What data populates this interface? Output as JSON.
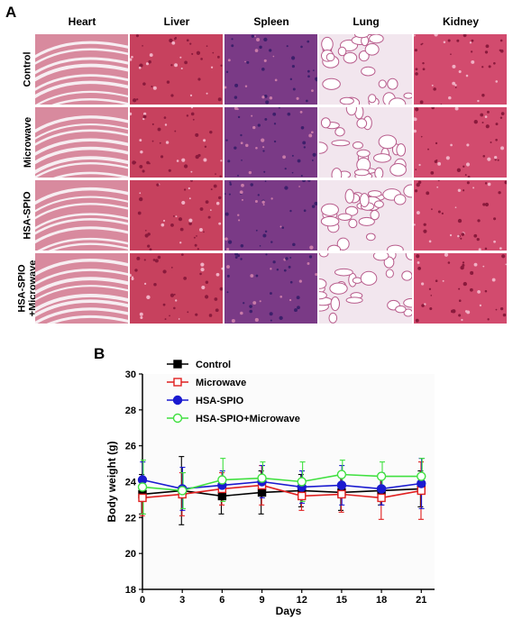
{
  "panel_a": {
    "letter": "A",
    "columns": [
      "Heart",
      "Liver",
      "Spleen",
      "Lung",
      "Kidney"
    ],
    "rows": [
      "Control",
      "Microwave",
      "HSA-SPIO",
      "HSA-SPIO\n+Microwave"
    ],
    "tissue_colors": {
      "Heart": "#d88a9e",
      "Liver": "#c7415e",
      "Spleen": "#7a3a86",
      "Lung": "#f2e6ee",
      "Kidney": "#d24b6e"
    }
  },
  "panel_b": {
    "letter": "B"
  },
  "chart_data": {
    "type": "line",
    "xlabel": "Days",
    "ylabel": "Body weight (g)",
    "x": [
      0,
      3,
      6,
      9,
      12,
      15,
      18,
      21
    ],
    "xticks": [
      "0",
      "3",
      "6",
      "9",
      "12",
      "15",
      "18",
      "21"
    ],
    "yticks": [
      "18",
      "20",
      "22",
      "24",
      "26",
      "28",
      "30"
    ],
    "xlim": [
      0,
      22
    ],
    "ylim": [
      18,
      30
    ],
    "grid": false,
    "legend_position": "top-left",
    "series": [
      {
        "name": "Control",
        "color": "#000000",
        "marker": "square-filled",
        "values": [
          23.3,
          23.5,
          23.2,
          23.4,
          23.5,
          23.4,
          23.5,
          23.6
        ],
        "errors": [
          1.1,
          1.9,
          1.0,
          1.2,
          0.9,
          1.0,
          0.8,
          1.0
        ]
      },
      {
        "name": "Microwave",
        "color": "#e02020",
        "marker": "square-open",
        "values": [
          23.1,
          23.3,
          23.6,
          23.8,
          23.2,
          23.3,
          23.1,
          23.5
        ],
        "errors": [
          1.0,
          1.2,
          0.9,
          1.1,
          0.8,
          1.0,
          1.2,
          1.6
        ]
      },
      {
        "name": "HSA-SPIO",
        "color": "#1a1ad0",
        "marker": "circle-filled",
        "values": [
          24.1,
          23.6,
          23.8,
          24.0,
          23.7,
          23.8,
          23.6,
          23.9
        ],
        "errors": [
          1.0,
          1.2,
          0.8,
          0.9,
          0.9,
          1.1,
          0.9,
          1.4
        ]
      },
      {
        "name": "HSA-SPIO+Microwave",
        "color": "#40e040",
        "marker": "circle-open",
        "values": [
          23.7,
          23.5,
          24.1,
          24.2,
          24.0,
          24.4,
          24.3,
          24.3
        ],
        "errors": [
          1.5,
          1.0,
          1.2,
          0.9,
          1.1,
          0.8,
          0.8,
          1.0
        ]
      }
    ]
  }
}
